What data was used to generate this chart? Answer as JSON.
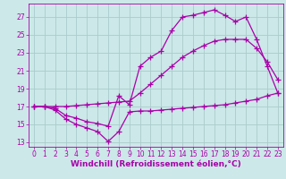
{
  "background_color": "#cce8e8",
  "grid_color": "#aacccc",
  "line_color": "#aa00aa",
  "marker": "+",
  "markersize": 4,
  "linewidth": 0.9,
  "markeredgewidth": 0.9,
  "xlabel": "Windchill (Refroidissement éolien,°C)",
  "xlabel_fontsize": 6.5,
  "tick_fontsize": 5.5,
  "xlim": [
    -0.5,
    23.5
  ],
  "ylim": [
    12.5,
    28.5
  ],
  "yticks": [
    13,
    15,
    17,
    19,
    21,
    23,
    25,
    27
  ],
  "xticks": [
    0,
    1,
    2,
    3,
    4,
    5,
    6,
    7,
    8,
    9,
    10,
    11,
    12,
    13,
    14,
    15,
    16,
    17,
    18,
    19,
    20,
    21,
    22,
    23
  ],
  "series": [
    {
      "x": [
        0,
        1,
        2,
        3,
        4,
        5,
        6,
        7,
        8,
        9,
        10,
        11,
        12,
        13,
        14,
        15,
        16,
        17,
        18,
        19,
        20,
        21,
        22,
        23
      ],
      "y": [
        17,
        17,
        16.6,
        15.6,
        15.0,
        14.6,
        14.2,
        13.1,
        14.2,
        16.4,
        16.5,
        16.5,
        16.6,
        16.7,
        16.8,
        16.9,
        17.0,
        17.1,
        17.2,
        17.4,
        17.6,
        17.8,
        18.2,
        18.5
      ]
    },
    {
      "x": [
        0,
        1,
        2,
        3,
        4,
        5,
        6,
        7,
        8,
        9,
        10,
        11,
        12,
        13,
        14,
        15,
        16,
        17,
        18,
        19,
        20,
        21,
        22,
        23
      ],
      "y": [
        17,
        17,
        17.0,
        17.0,
        17.1,
        17.2,
        17.3,
        17.4,
        17.5,
        17.6,
        18.5,
        19.5,
        20.5,
        21.5,
        22.5,
        23.2,
        23.8,
        24.3,
        24.5,
        24.5,
        24.5,
        23.5,
        22.0,
        20.0
      ]
    },
    {
      "x": [
        0,
        1,
        2,
        3,
        4,
        5,
        6,
        7,
        8,
        9,
        10,
        11,
        12,
        13,
        14,
        15,
        16,
        17,
        18,
        19,
        20,
        21,
        22,
        23
      ],
      "y": [
        17,
        17,
        16.8,
        16.0,
        15.7,
        15.3,
        15.1,
        14.8,
        18.2,
        17.2,
        21.5,
        22.5,
        23.2,
        25.5,
        27.0,
        27.2,
        27.5,
        27.8,
        27.2,
        26.5,
        27.0,
        24.5,
        21.5,
        18.5
      ]
    }
  ]
}
